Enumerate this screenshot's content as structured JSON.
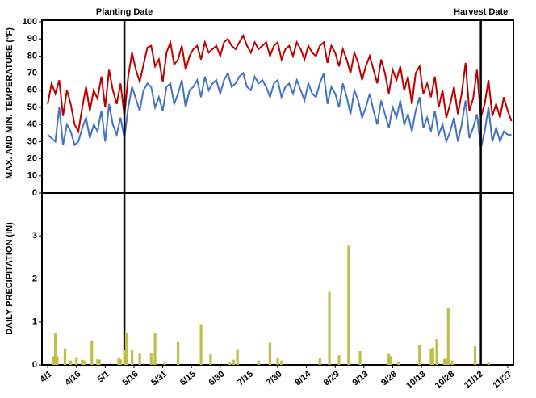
{
  "chart_data": [
    {
      "type": "line",
      "ylabel": "MAX. AND MIN. TEMPERATURE (°F)",
      "xlim": [
        -3,
        243
      ],
      "ylim": [
        0,
        100
      ],
      "yticks": [
        0,
        10,
        20,
        30,
        40,
        50,
        60,
        70,
        80,
        90,
        100
      ],
      "annotations": [
        {
          "text": "Planting Date",
          "x": 40
        },
        {
          "text": "Harvest Date",
          "x": 226
        }
      ],
      "x": [
        0,
        2,
        4,
        6,
        8,
        10,
        12,
        14,
        16,
        18,
        20,
        22,
        24,
        26,
        28,
        30,
        32,
        34,
        36,
        38,
        40,
        42,
        44,
        46,
        48,
        50,
        52,
        54,
        56,
        58,
        60,
        62,
        64,
        66,
        68,
        70,
        72,
        74,
        76,
        78,
        80,
        82,
        84,
        86,
        88,
        90,
        92,
        94,
        96,
        98,
        100,
        102,
        104,
        106,
        108,
        110,
        112,
        114,
        116,
        118,
        120,
        122,
        124,
        126,
        128,
        130,
        132,
        134,
        136,
        138,
        140,
        142,
        144,
        146,
        148,
        150,
        152,
        154,
        156,
        158,
        160,
        162,
        164,
        166,
        168,
        170,
        172,
        174,
        176,
        178,
        180,
        182,
        184,
        186,
        188,
        190,
        192,
        194,
        196,
        198,
        200,
        202,
        204,
        206,
        208,
        210,
        212,
        214,
        216,
        218,
        220,
        222,
        224,
        226,
        228,
        230,
        232,
        234,
        236,
        238,
        240,
        242
      ],
      "series": [
        {
          "color": "#c00000",
          "values": [
            52,
            64,
            58,
            66,
            45,
            60,
            52,
            40,
            36,
            50,
            62,
            48,
            60,
            55,
            68,
            50,
            72,
            60,
            52,
            64,
            45,
            68,
            82,
            72,
            65,
            75,
            85,
            86,
            74,
            78,
            65,
            82,
            88,
            75,
            78,
            86,
            72,
            80,
            84,
            86,
            78,
            88,
            82,
            84,
            86,
            80,
            88,
            90,
            86,
            84,
            88,
            92,
            86,
            82,
            88,
            84,
            86,
            88,
            80,
            86,
            88,
            78,
            84,
            86,
            80,
            88,
            84,
            78,
            86,
            82,
            80,
            86,
            88,
            76,
            86,
            82,
            74,
            84,
            78,
            70,
            82,
            76,
            66,
            74,
            80,
            72,
            64,
            78,
            70,
            58,
            72,
            66,
            74,
            60,
            68,
            52,
            70,
            74,
            58,
            64,
            56,
            68,
            50,
            60,
            44,
            52,
            62,
            46,
            58,
            76,
            48,
            55,
            72,
            44,
            52,
            66,
            45,
            52,
            44,
            56,
            48,
            42
          ]
        },
        {
          "color": "#4472c4",
          "values": [
            34,
            32,
            30,
            50,
            28,
            40,
            36,
            28,
            30,
            38,
            44,
            32,
            40,
            36,
            48,
            30,
            52,
            40,
            34,
            44,
            32,
            50,
            62,
            55,
            48,
            60,
            64,
            62,
            50,
            56,
            48,
            62,
            64,
            52,
            58,
            66,
            50,
            60,
            62,
            66,
            56,
            68,
            60,
            64,
            66,
            58,
            66,
            70,
            62,
            64,
            68,
            70,
            62,
            60,
            68,
            64,
            66,
            62,
            56,
            64,
            66,
            56,
            62,
            64,
            58,
            66,
            60,
            54,
            64,
            58,
            56,
            64,
            70,
            52,
            62,
            58,
            50,
            64,
            56,
            46,
            60,
            54,
            44,
            50,
            58,
            48,
            40,
            54,
            46,
            38,
            50,
            44,
            54,
            40,
            46,
            36,
            48,
            56,
            38,
            44,
            36,
            48,
            34,
            40,
            30,
            36,
            44,
            30,
            40,
            54,
            32,
            38,
            46,
            26,
            36,
            50,
            30,
            38,
            30,
            36,
            34,
            34
          ]
        }
      ]
    },
    {
      "type": "bar",
      "ylabel": "DAILY PRECIPITATION (IN)",
      "color": "#bcc04a",
      "xlim": [
        -3,
        243
      ],
      "ylim": [
        0,
        4
      ],
      "yticks": [
        0,
        1,
        2,
        3
      ],
      "xticks": [
        {
          "value": 0,
          "label": "4/1"
        },
        {
          "value": 15,
          "label": "4/16"
        },
        {
          "value": 30,
          "label": "5/1"
        },
        {
          "value": 45,
          "label": "5/16"
        },
        {
          "value": 60,
          "label": "5/31"
        },
        {
          "value": 75,
          "label": "6/15"
        },
        {
          "value": 90,
          "label": "6/30"
        },
        {
          "value": 105,
          "label": "7/15"
        },
        {
          "value": 120,
          "label": "7/30"
        },
        {
          "value": 135,
          "label": "8/14"
        },
        {
          "value": 150,
          "label": "8/29"
        },
        {
          "value": 165,
          "label": "9/13"
        },
        {
          "value": 180,
          "label": "9/28"
        },
        {
          "value": 195,
          "label": "10/13"
        },
        {
          "value": 210,
          "label": "10/28"
        },
        {
          "value": 225,
          "label": "11/12"
        },
        {
          "value": 240,
          "label": "11/27"
        }
      ],
      "x": [
        3,
        4,
        5,
        9,
        12,
        15,
        18,
        19,
        23,
        26,
        27,
        37,
        38,
        40,
        41,
        44,
        48,
        54,
        56,
        61,
        68,
        80,
        85,
        95,
        97,
        99,
        110,
        116,
        120,
        122,
        142,
        147,
        152,
        157,
        163,
        178,
        179,
        183,
        194,
        200,
        201,
        203,
        207,
        208,
        209,
        211,
        223,
        230
      ],
      "values": [
        0.2,
        0.75,
        0.2,
        0.38,
        0.1,
        0.18,
        0.12,
        0.1,
        0.57,
        0.13,
        0.12,
        0.15,
        0.13,
        0.35,
        0.75,
        0.35,
        0.28,
        0.28,
        0.75,
        0.05,
        0.53,
        0.95,
        0.25,
        0.05,
        0.12,
        0.37,
        0.1,
        0.52,
        0.15,
        0.1,
        0.15,
        1.7,
        0.22,
        2.77,
        0.32,
        0.27,
        0.2,
        0.07,
        0.47,
        0.38,
        0.4,
        0.6,
        0.14,
        0.14,
        1.33,
        0.1,
        0.45,
        0.05
      ]
    }
  ]
}
